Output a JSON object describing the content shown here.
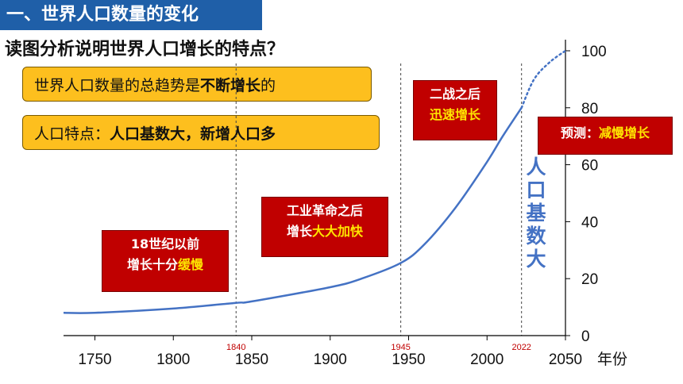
{
  "header": {
    "title": "一、世界人口数量的变化",
    "question": "读图分析说明世界人口增长的特点？"
  },
  "boxes": {
    "trend_prefix": "世界人口数量的总趋势是",
    "trend_bold": "不断增长",
    "trend_suffix": "的",
    "feature_prefix": "人口特点：",
    "feature_bold": "人口基数大，新增人口多"
  },
  "annotations": {
    "pre1840_line1": "18世纪以前",
    "pre1840_line2_a": "增长十分",
    "pre1840_line2_b": "缓慢",
    "ind_line1": "工业革命之后",
    "ind_line2_a": "增长",
    "ind_line2_b": "大大加快",
    "postwar_line1": "二战之后",
    "postwar_line2": "迅速增长",
    "forecast_a": "预测：",
    "forecast_b": "减慢增长",
    "vertical_label": "人口基数大"
  },
  "colors": {
    "line": "#4472c4",
    "red_box": "#c00000",
    "yellow_box": "#fdbf1e",
    "title_bar": "#1f5fa8",
    "highlight": "#ffe500"
  },
  "chart_data": {
    "type": "line",
    "title": "",
    "xlabel": "年份",
    "ylabel": "",
    "xlim": [
      1730,
      2050
    ],
    "ylim": [
      0,
      100
    ],
    "x_ticks": [
      1750,
      1800,
      1850,
      1900,
      1950,
      2000,
      2050
    ],
    "y_ticks": [
      0,
      20,
      40,
      60,
      80,
      100
    ],
    "reference_years": [
      "1840",
      "1945",
      "2022"
    ],
    "series": [
      {
        "style": "solid",
        "x": [
          1730,
          1750,
          1800,
          1840,
          1850,
          1900,
          1920,
          1945,
          1960,
          1980,
          2000,
          2010,
          2022
        ],
        "y": [
          8,
          8,
          9.5,
          11.5,
          12,
          17,
          20,
          25.5,
          32,
          45,
          61,
          70,
          80
        ]
      },
      {
        "style": "dotted",
        "x": [
          2022,
          2030,
          2040,
          2050
        ],
        "y": [
          80,
          90,
          96,
          100
        ]
      }
    ]
  }
}
